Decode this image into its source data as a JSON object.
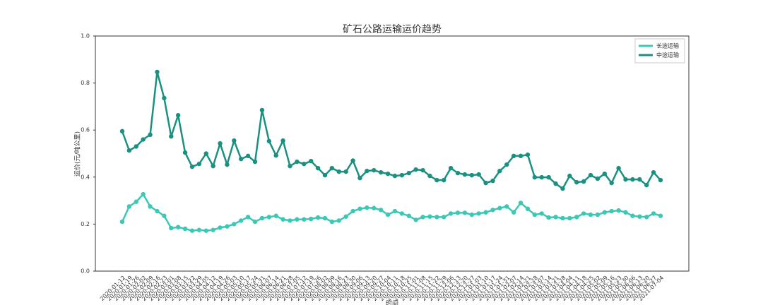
{
  "chart_data": {
    "type": "line",
    "title": "矿石公路运输运价趋势",
    "y_label": "运价(元/吨公里)",
    "x_label": "时间",
    "legend": "upper right",
    "grid": false,
    "ylim": [
      0,
      1
    ],
    "yticks": [
      {
        "value": 0,
        "label": "0.0"
      },
      {
        "value": 0.2,
        "label": "0.2"
      },
      {
        "value": 0.4,
        "label": "0.4"
      },
      {
        "value": 0.6,
        "label": "0.6"
      },
      {
        "value": 0.8,
        "label": "0.8"
      },
      {
        "value": 1,
        "label": "1.0"
      }
    ],
    "categories": [
      "2020-01-12",
      "2020-01-19",
      "2020-01-26",
      "2020-02-02",
      "2020-02-09",
      "2020-02-16",
      "2020-02-23",
      "2020-03-01",
      "2020-03-08",
      "2020-03-15",
      "2020-03-22",
      "2020-03-29",
      "2020-04-05",
      "2020-04-12",
      "2020-04-19",
      "2020-04-26",
      "2020-05-03",
      "2020-05-10",
      "2020-05-17",
      "2020-05-24",
      "2020-05-31",
      "2020-06-07",
      "2020-06-14",
      "2020-06-21",
      "2020-06-28",
      "2020-07-05",
      "2020-07-12",
      "2020-07-19",
      "2020-07-26",
      "2020-08-02",
      "2020-08-09",
      "2020-08-16",
      "2020-08-23",
      "2020-08-30",
      "2020-09-06",
      "2020-09-13",
      "2020-09-20",
      "2020-09-27",
      "2020-10-04",
      "2020-10-11",
      "2020-10-18",
      "2020-10-25",
      "2020-11-01",
      "2020-11-08",
      "2020-11-15",
      "2020-11-22",
      "2020-11-29",
      "2020-12-06",
      "2020-12-13",
      "2020-12-20",
      "2020-12-27",
      "2021-01-03",
      "2021-01-10",
      "2021-01-17",
      "2021-01-24",
      "2021-01-31",
      "2021-02-07",
      "2021-02-14",
      "2021-02-21",
      "2021-02-28",
      "2021-03-07",
      "2021-03-14",
      "2021-03-21",
      "2021-03-28",
      "2021-04-04",
      "2021-04-11",
      "2021-04-18",
      "2021-04-25",
      "2021-05-02",
      "2021-05-09",
      "2021-05-16",
      "2021-05-23",
      "2021-05-30",
      "2021-06-06",
      "2021-06-13",
      "2021-06-20",
      "2021-06-27",
      "2021-07-04"
    ],
    "series": [
      {
        "name": "长途运输",
        "color": "#3cc8b4",
        "values": [
          0.21,
          0.275,
          0.295,
          0.327,
          0.275,
          0.255,
          0.235,
          0.183,
          0.187,
          0.18,
          0.172,
          0.175,
          0.172,
          0.175,
          0.185,
          0.19,
          0.2,
          0.215,
          0.23,
          0.21,
          0.225,
          0.23,
          0.235,
          0.22,
          0.215,
          0.22,
          0.22,
          0.222,
          0.228,
          0.225,
          0.21,
          0.215,
          0.232,
          0.255,
          0.265,
          0.27,
          0.268,
          0.26,
          0.24,
          0.255,
          0.245,
          0.235,
          0.218,
          0.23,
          0.232,
          0.23,
          0.23,
          0.245,
          0.248,
          0.248,
          0.24,
          0.245,
          0.25,
          0.26,
          0.268,
          0.275,
          0.25,
          0.29,
          0.265,
          0.24,
          0.245,
          0.228,
          0.23,
          0.225,
          0.225,
          0.23,
          0.245,
          0.24,
          0.24,
          0.25,
          0.255,
          0.258,
          0.25,
          0.235,
          0.232,
          0.23,
          0.245,
          0.235
        ]
      },
      {
        "name": "中途运输",
        "color": "#1a9080",
        "values": [
          0.595,
          0.513,
          0.53,
          0.56,
          0.58,
          0.847,
          0.736,
          0.573,
          0.663,
          0.504,
          0.444,
          0.456,
          0.5,
          0.447,
          0.543,
          0.453,
          0.555,
          0.477,
          0.49,
          0.465,
          0.685,
          0.553,
          0.492,
          0.555,
          0.447,
          0.465,
          0.456,
          0.468,
          0.438,
          0.408,
          0.438,
          0.423,
          0.423,
          0.47,
          0.396,
          0.426,
          0.429,
          0.42,
          0.414,
          0.405,
          0.408,
          0.417,
          0.432,
          0.429,
          0.405,
          0.387,
          0.387,
          0.438,
          0.417,
          0.411,
          0.408,
          0.411,
          0.375,
          0.384,
          0.426,
          0.453,
          0.49,
          0.49,
          0.495,
          0.399,
          0.399,
          0.399,
          0.372,
          0.351,
          0.405,
          0.378,
          0.381,
          0.408,
          0.393,
          0.414,
          0.375,
          0.438,
          0.39,
          0.39,
          0.39,
          0.366,
          0.42,
          0.387
        ]
      }
    ]
  }
}
